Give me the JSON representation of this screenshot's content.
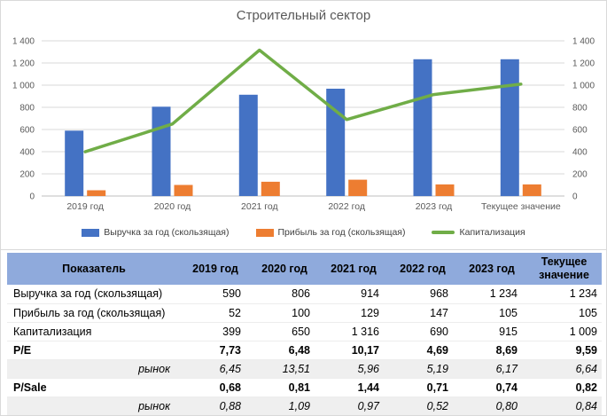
{
  "chart_data": {
    "type": "combo",
    "title": "Строительный сектор",
    "categories": [
      "2019 год",
      "2020 год",
      "2021 год",
      "2022 год",
      "2023 год",
      "Текущее значение"
    ],
    "series": [
      {
        "name": "Выручка за год (скользящая)",
        "type": "bar",
        "color": "#4472C4",
        "values": [
          590,
          806,
          914,
          968,
          1234,
          1234
        ]
      },
      {
        "name": "Прибыль за год (скользящая)",
        "type": "bar",
        "color": "#ED7D31",
        "values": [
          52,
          100,
          129,
          147,
          105,
          105
        ]
      },
      {
        "name": "Капитализация",
        "type": "line",
        "color": "#70AD47",
        "values": [
          399,
          650,
          1316,
          690,
          915,
          1009
        ]
      }
    ],
    "ylim": [
      0,
      1400
    ],
    "ytick_step": 200,
    "secondary_axis": true,
    "grid": true,
    "legend_position": "bottom"
  },
  "table": {
    "headers": [
      "Показатель",
      "2019 год",
      "2020 год",
      "2021 год",
      "2022 год",
      "2023 год",
      "Текущее значение"
    ],
    "rows": [
      {
        "label": "Выручка за год (скользящая)",
        "style": "normal",
        "values": [
          "590",
          "806",
          "914",
          "968",
          "1 234",
          "1 234"
        ]
      },
      {
        "label": "Прибыль за год (скользящая)",
        "style": "normal",
        "values": [
          "52",
          "100",
          "129",
          "147",
          "105",
          "105"
        ]
      },
      {
        "label": "Капитализация",
        "style": "normal",
        "values": [
          "399",
          "650",
          "1 316",
          "690",
          "915",
          "1 009"
        ]
      },
      {
        "label": "P/E",
        "style": "bold",
        "values": [
          "7,73",
          "6,48",
          "10,17",
          "4,69",
          "8,69",
          "9,59"
        ]
      },
      {
        "label": "рынок",
        "style": "market",
        "values": [
          "6,45",
          "13,51",
          "5,96",
          "5,19",
          "6,17",
          "6,64"
        ]
      },
      {
        "label": "P/Sale",
        "style": "bold",
        "values": [
          "0,68",
          "0,81",
          "1,44",
          "0,71",
          "0,74",
          "0,82"
        ]
      },
      {
        "label": "рынок",
        "style": "market",
        "values": [
          "0,88",
          "1,09",
          "0,97",
          "0,52",
          "0,80",
          "0,84"
        ]
      }
    ]
  },
  "colors": {
    "revenue_bar": "#4472C4",
    "profit_bar": "#ED7D31",
    "cap_line": "#70AD47",
    "gridline": "#D9D9D9",
    "axis_text": "#595959",
    "table_header_bg": "#8FAADC",
    "market_row_bg": "#EFEFEF"
  }
}
